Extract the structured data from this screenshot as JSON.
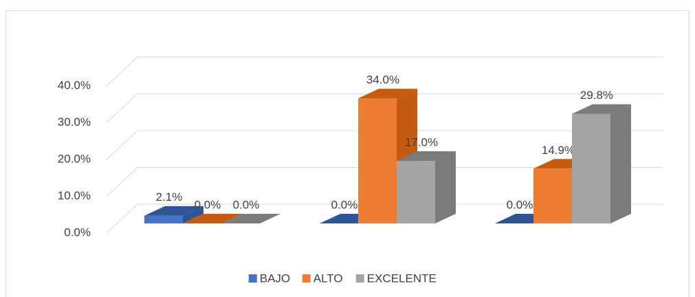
{
  "chart_data": {
    "type": "bar3d",
    "categories": [
      null,
      null,
      null
    ],
    "series": [
      {
        "name": "BAJO",
        "color": "#4472c4",
        "side_color": "#2f5597",
        "values": [
          2.1,
          0.0,
          0.0
        ],
        "value_labels": [
          "2.1%",
          "0.0%",
          "0.0%"
        ]
      },
      {
        "name": "ALTO",
        "color": "#ed7d31",
        "side_color": "#c55a11",
        "values": [
          0.0,
          34.0,
          14.9
        ],
        "value_labels": [
          "0.0%",
          "34.0%",
          "14.9%"
        ]
      },
      {
        "name": "EXCELENTE",
        "color": "#a5a5a5",
        "side_color": "#7b7b7b",
        "values": [
          0.0,
          17.0,
          29.8
        ],
        "value_labels": [
          "0.0%",
          "17.0%",
          "29.8%"
        ]
      }
    ],
    "ylim": [
      0,
      40
    ],
    "yticks": [
      {
        "value": 0,
        "label": "0.0%"
      },
      {
        "value": 10,
        "label": "10.0%"
      },
      {
        "value": 20,
        "label": "20.0%"
      },
      {
        "value": 30,
        "label": "30.0%"
      },
      {
        "value": 40,
        "label": "40.0%"
      }
    ],
    "grid": true,
    "legend": "bottom"
  }
}
